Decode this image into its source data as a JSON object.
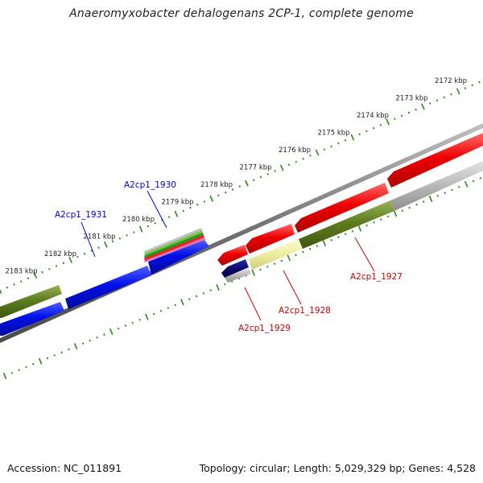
{
  "title": "Anaeromyxobacter dehalogenans 2CP-1, complete genome",
  "footer": {
    "accession": "Accession: NC_011891",
    "meta": "Topology: circular; Length: 5,029,329 bp; Genes: 4,528"
  },
  "colors": {
    "tick": "#2a8a14",
    "backbone": "#808080",
    "forward_blue": "#0010e8",
    "reverse_red": "#ee0000",
    "olive": "#5e7d1e",
    "pale_yellow": "#eeeea0",
    "grey": "#b8b8b8",
    "navy": "#0a0a70",
    "label_blue": "#0000cc",
    "label_red": "#cc0000"
  },
  "kbp_labels": [
    "2172 kbp",
    "2173 kbp",
    "2174 kbp",
    "2175 kbp",
    "2176 kbp",
    "2177 kbp",
    "2178 kbp",
    "2179 kbp",
    "2180 kbp",
    "2181 kbp",
    "2182 kbp",
    "2183 kbp"
  ],
  "gene_labels": [
    {
      "id": "A2cp1_1930",
      "strand": "forward"
    },
    {
      "id": "A2cp1_1931",
      "strand": "forward"
    },
    {
      "id": "A2cp1_1927",
      "strand": "reverse"
    },
    {
      "id": "A2cp1_1928",
      "strand": "reverse"
    },
    {
      "id": "A2cp1_1929",
      "strand": "reverse"
    }
  ]
}
